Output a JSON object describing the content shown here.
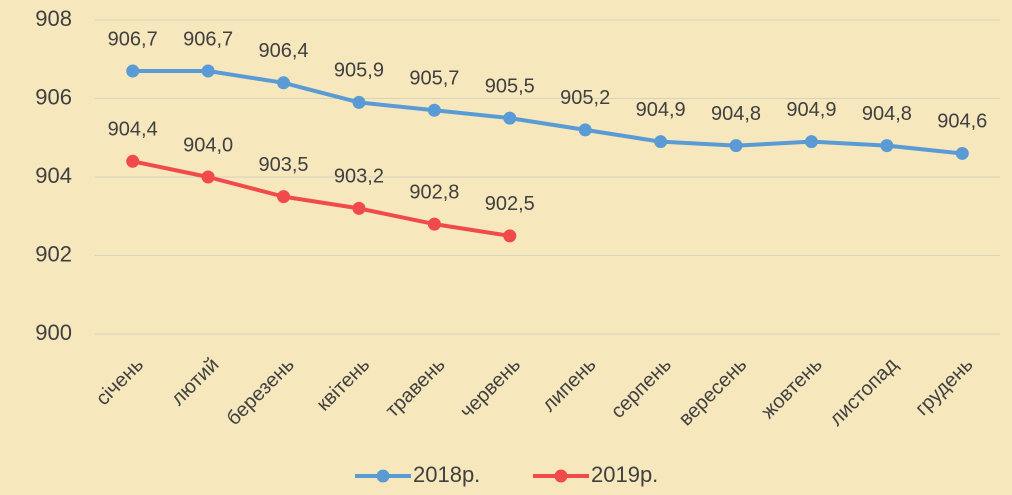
{
  "chart_data": {
    "type": "line",
    "categories": [
      "січень",
      "лютий",
      "березень",
      "квітень",
      "травень",
      "червень",
      "липень",
      "серпень",
      "вересень",
      "жовтень",
      "листопад",
      "грудень"
    ],
    "series": [
      {
        "name": "2018р.",
        "color": "#5b9bd5",
        "values": [
          906.7,
          906.7,
          906.4,
          905.9,
          905.7,
          905.5,
          905.2,
          904.9,
          904.8,
          904.9,
          904.8,
          904.6
        ],
        "value_labels": [
          "906,7",
          "906,7",
          "906,4",
          "905,9",
          "905,7",
          "905,5",
          "905,2",
          "904,9",
          "904,8",
          "904,9",
          "904,8",
          "904,6"
        ]
      },
      {
        "name": "2019р.",
        "color": "#f04a4a",
        "values": [
          904.4,
          904.0,
          903.5,
          903.2,
          902.8,
          902.5,
          null,
          null,
          null,
          null,
          null,
          null
        ],
        "value_labels": [
          "904,4",
          "904,0",
          "903,5",
          "903,2",
          "902,8",
          "902,5",
          null,
          null,
          null,
          null,
          null,
          null
        ]
      }
    ],
    "ylim": [
      900,
      908
    ],
    "yticks": [
      900,
      902,
      904,
      906,
      908
    ],
    "grid": true,
    "legend": "bottom"
  }
}
